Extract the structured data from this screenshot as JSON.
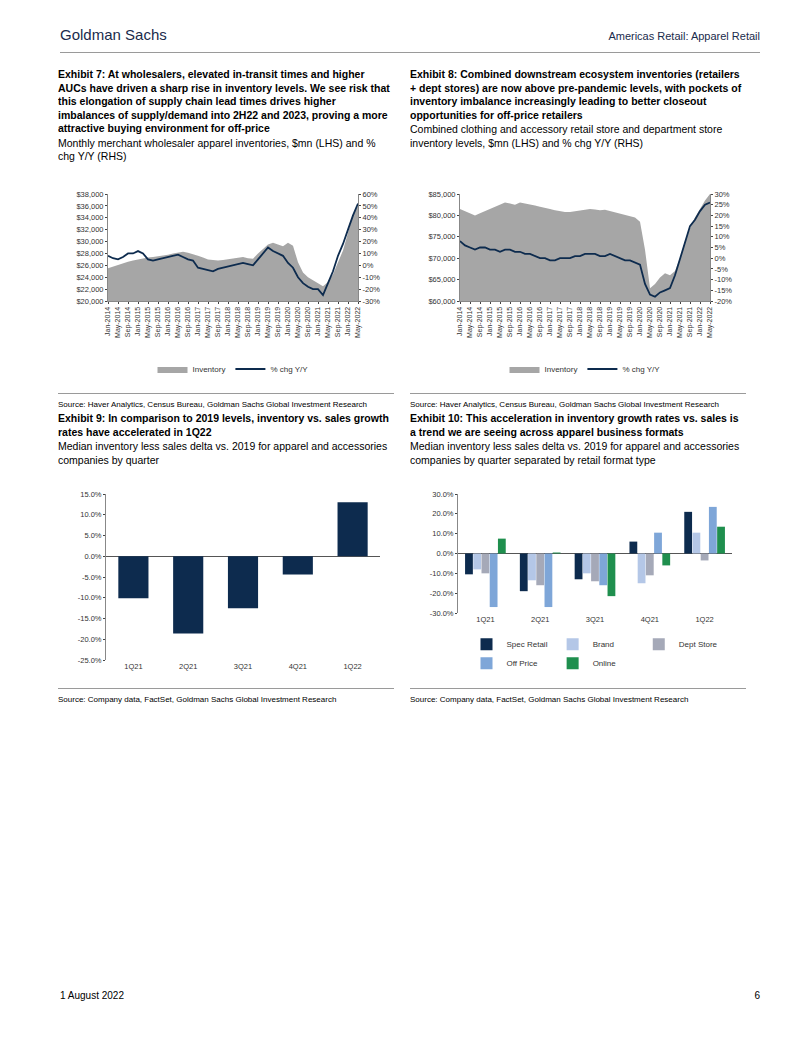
{
  "header": {
    "left": "Goldman Sachs",
    "right": "Americas Retail: Apparel Retail"
  },
  "footer": {
    "date": "1 August 2022",
    "page": "6"
  },
  "chart_data": [
    {
      "type": "line",
      "title": "Exhibit 7: At wholesalers, elevated in-transit times and higher AUCs have driven a sharp rise in inventory levels. We see risk that this elongation of supply chain lead times drives higher imbalances of supply/demand into 2H22 and 2023, proving a more attractive buying environment for off-price",
      "subtitle": "Monthly merchant wholesaler apparel inventories, $mn (LHS) and % chg Y/Y (RHS)",
      "source": "Source: Haver Analytics, Census Bureau, Goldman Sachs Global Investment Research",
      "categories": [
        "Jan-2014",
        null,
        "May-2014",
        null,
        "Sep-2014",
        null,
        "Jan-2015",
        null,
        "May-2015",
        null,
        "Sep-2015",
        null,
        "Jan-2016",
        null,
        "May-2016",
        null,
        "Sep-2016",
        null,
        "Jan-2017",
        null,
        "May-2017",
        null,
        "Sep-2017",
        null,
        "Jan-2018",
        null,
        "May-2018",
        null,
        "Sep-2018",
        null,
        "Jan-2019",
        null,
        "May-2019",
        null,
        "Sep-2019",
        null,
        "Jan-2020",
        null,
        "May-2020",
        null,
        "Sep-2020",
        null,
        "Jan-2021",
        null,
        "May-2021",
        null,
        "Sep-2021",
        null,
        "Jan-2022",
        null,
        "May-2022"
      ],
      "series": [
        {
          "name": "Inventory",
          "type": "area",
          "color": "#a6a6a6",
          "values": [
            25500,
            25800,
            26000,
            26300,
            26600,
            26800,
            27000,
            27200,
            27300,
            27400,
            27500,
            27600,
            27800,
            28000,
            28200,
            28300,
            28100,
            27900,
            27600,
            27300,
            27000,
            26900,
            26800,
            26900,
            27000,
            27200,
            27300,
            27400,
            27200,
            27100,
            28000,
            28800,
            29500,
            29800,
            29500,
            29200,
            29800,
            29300,
            26500,
            24800,
            24000,
            23500,
            23000,
            22500,
            23200,
            24500,
            26500,
            28500,
            31500,
            34500,
            36000
          ]
        },
        {
          "name": "% chg Y/Y",
          "type": "line",
          "axis": "y2",
          "color": "#0d2b4e",
          "values": [
            8,
            6,
            5,
            7,
            10,
            10,
            12,
            10,
            5,
            4,
            5,
            6,
            7,
            8,
            9,
            7,
            5,
            4,
            -2,
            -3,
            -4,
            -5,
            -3,
            -2,
            -1,
            0,
            1,
            2,
            1,
            0,
            5,
            10,
            15,
            12,
            10,
            8,
            2,
            -2,
            -10,
            -15,
            -18,
            -20,
            -20,
            -25,
            -15,
            -5,
            8,
            18,
            30,
            42,
            52
          ]
        }
      ],
      "ylim": [
        20000,
        38000
      ],
      "yticks": [
        {
          "value": 20000,
          "label": "$20,000"
        },
        {
          "value": 22000,
          "label": "$22,000"
        },
        {
          "value": 24000,
          "label": "$24,000"
        },
        {
          "value": 26000,
          "label": "$26,000"
        },
        {
          "value": 28000,
          "label": "$28,000"
        },
        {
          "value": 30000,
          "label": "$30,000"
        },
        {
          "value": 32000,
          "label": "$32,000"
        },
        {
          "value": 34000,
          "label": "$34,000"
        },
        {
          "value": 36000,
          "label": "$36,000"
        },
        {
          "value": 38000,
          "label": "$38,000"
        }
      ],
      "y2lim": [
        -30,
        60
      ],
      "y2ticks": [
        {
          "value": -30,
          "label": "-30%"
        },
        {
          "value": -20,
          "label": "-20%"
        },
        {
          "value": -10,
          "label": "-10%"
        },
        {
          "value": 0,
          "label": "0%"
        },
        {
          "value": 10,
          "label": "10%"
        },
        {
          "value": 20,
          "label": "20%"
        },
        {
          "value": 30,
          "label": "30%"
        },
        {
          "value": 40,
          "label": "40%"
        },
        {
          "value": 50,
          "label": "50%"
        },
        {
          "value": 60,
          "label": "60%"
        }
      ],
      "grid": false,
      "legend": "bottom"
    },
    {
      "type": "line",
      "title": "Exhibit 8: Combined downstream ecosystem inventories (retailers + dept stores) are now above pre-pandemic levels, with pockets of inventory imbalance increasingly leading to better closeout opportunities for off-price retailers",
      "subtitle": "Combined clothing and accessory retail store and department store inventory levels, $mn (LHS) and % chg Y/Y (RHS)",
      "source": "Source: Haver Analytics, Census Bureau, Goldman Sachs Global Investment Research",
      "categories": [
        "Jan-2014",
        null,
        "May-2014",
        null,
        "Sep-2014",
        null,
        "Jan-2015",
        null,
        "May-2015",
        null,
        "Sep-2015",
        null,
        "Jan-2016",
        null,
        "May-2016",
        null,
        "Sep-2016",
        null,
        "Jan-2017",
        null,
        "May-2017",
        null,
        "Sep-2017",
        null,
        "Jan-2018",
        null,
        "May-2018",
        null,
        "Sep-2018",
        null,
        "Jan-2019",
        null,
        "May-2019",
        null,
        "Sep-2019",
        null,
        "Jan-2020",
        null,
        "May-2020",
        null,
        "Sep-2020",
        null,
        "Jan-2021",
        null,
        "May-2021",
        null,
        "Sep-2021",
        null,
        "Jan-2022",
        null,
        "May-2022"
      ],
      "series": [
        {
          "name": "Inventory",
          "type": "area",
          "color": "#a6a6a6",
          "values": [
            81500,
            81000,
            80500,
            80000,
            80500,
            81000,
            81500,
            82000,
            82500,
            83000,
            82800,
            82500,
            83000,
            82800,
            82500,
            82300,
            82000,
            81800,
            81500,
            81200,
            81000,
            80800,
            80800,
            81000,
            81200,
            81300,
            81500,
            81400,
            81200,
            81300,
            81000,
            80800,
            80500,
            80200,
            79800,
            79500,
            78500,
            72000,
            63000,
            64000,
            65500,
            66500,
            66000,
            67000,
            70000,
            74000,
            77000,
            79500,
            81500,
            83500,
            85000
          ]
        },
        {
          "name": "% chg Y/Y",
          "type": "line",
          "axis": "y2",
          "color": "#0d2b4e",
          "values": [
            8,
            6,
            5,
            4,
            5,
            5,
            4,
            4,
            3,
            4,
            4,
            3,
            3,
            2,
            2,
            1,
            0,
            0,
            -1,
            -1,
            0,
            0,
            0,
            1,
            1,
            2,
            2,
            2,
            1,
            1,
            2,
            1,
            0,
            -1,
            -1,
            -2,
            -3,
            -12,
            -17,
            -18,
            -16,
            -15,
            -14,
            -8,
            0,
            8,
            15,
            18,
            22,
            25,
            26
          ]
        }
      ],
      "ylim": [
        60000,
        85000
      ],
      "yticks": [
        {
          "value": 60000,
          "label": "$60,000"
        },
        {
          "value": 65000,
          "label": "$65,000"
        },
        {
          "value": 70000,
          "label": "$70,000"
        },
        {
          "value": 75000,
          "label": "$75,000"
        },
        {
          "value": 80000,
          "label": "$80,000"
        },
        {
          "value": 85000,
          "label": "$85,000"
        }
      ],
      "y2lim": [
        -20,
        30
      ],
      "y2ticks": [
        {
          "value": -20,
          "label": "-20%"
        },
        {
          "value": -15,
          "label": "-15%"
        },
        {
          "value": -10,
          "label": "-10%"
        },
        {
          "value": -5,
          "label": "-5%"
        },
        {
          "value": 0,
          "label": "0%"
        },
        {
          "value": 5,
          "label": "5%"
        },
        {
          "value": 10,
          "label": "10%"
        },
        {
          "value": 15,
          "label": "15%"
        },
        {
          "value": 20,
          "label": "20%"
        },
        {
          "value": 25,
          "label": "25%"
        },
        {
          "value": 30,
          "label": "30%"
        }
      ],
      "grid": false,
      "legend": "bottom"
    },
    {
      "type": "bar",
      "title": "Exhibit 9: In comparison to 2019 levels, inventory vs. sales growth rates have accelerated in 1Q22",
      "subtitle": "Median inventory less sales delta vs. 2019 for apparel and accessories companies by quarter",
      "source": "Source: Company data, FactSet, Goldman Sachs Global Investment Research",
      "categories": [
        "1Q21",
        "2Q21",
        "3Q21",
        "4Q21",
        "1Q22"
      ],
      "values": [
        -10.1,
        -18.6,
        -12.5,
        -4.4,
        13.0
      ],
      "color": "#0d2b4e",
      "ylim": [
        -25,
        15
      ],
      "yticks": [
        {
          "value": -25,
          "label": "-25.0%"
        },
        {
          "value": -20,
          "label": "-20.0%"
        },
        {
          "value": -15,
          "label": "-15.0%"
        },
        {
          "value": -10,
          "label": "-10.0%"
        },
        {
          "value": -5,
          "label": "-5.0%"
        },
        {
          "value": 0,
          "label": "0.0%"
        },
        {
          "value": 5,
          "label": "5.0%"
        },
        {
          "value": 10,
          "label": "10.0%"
        },
        {
          "value": 15,
          "label": "15.0%"
        }
      ],
      "grid": false
    },
    {
      "type": "bar",
      "title": "Exhibit 10: This acceleration in inventory growth rates vs. sales is a trend we are seeing across apparel business formats",
      "subtitle": "Median inventory less sales delta vs. 2019 for apparel and accessories companies by quarter separated by retail format type",
      "source": "Source: Company data, FactSet, Goldman Sachs Global Investment Research",
      "categories": [
        "1Q21",
        "2Q21",
        "3Q21",
        "4Q21",
        "1Q22"
      ],
      "series": [
        {
          "name": "Spec Retail",
          "color": "#0d2b4e",
          "values": [
            -10.5,
            -19,
            -13,
            6,
            21
          ]
        },
        {
          "name": "Brand",
          "color": "#b4c7e7",
          "values": [
            -8,
            -13.5,
            -10,
            -15,
            10.5
          ]
        },
        {
          "name": "Dept Store",
          "color": "#a5a9b8",
          "values": [
            -10,
            -16,
            -14,
            -11,
            -3.5
          ]
        },
        {
          "name": "Off Price",
          "color": "#7ea6d8",
          "values": [
            -27,
            -27,
            -16,
            10.5,
            23.5
          ]
        },
        {
          "name": "Online",
          "color": "#1f8f4e",
          "values": [
            7.5,
            0.5,
            -21.5,
            -6,
            13.5
          ]
        }
      ],
      "ylim": [
        -30,
        30
      ],
      "yticks": [
        {
          "value": -30,
          "label": "-30.0%"
        },
        {
          "value": -20,
          "label": "-20.0%"
        },
        {
          "value": -10,
          "label": "-10.0%"
        },
        {
          "value": 0,
          "label": "0.0%"
        },
        {
          "value": 10,
          "label": "10.0%"
        },
        {
          "value": 20,
          "label": "20.0%"
        },
        {
          "value": 30,
          "label": "30.0%"
        }
      ],
      "grid": false,
      "legend": "bottom"
    }
  ]
}
